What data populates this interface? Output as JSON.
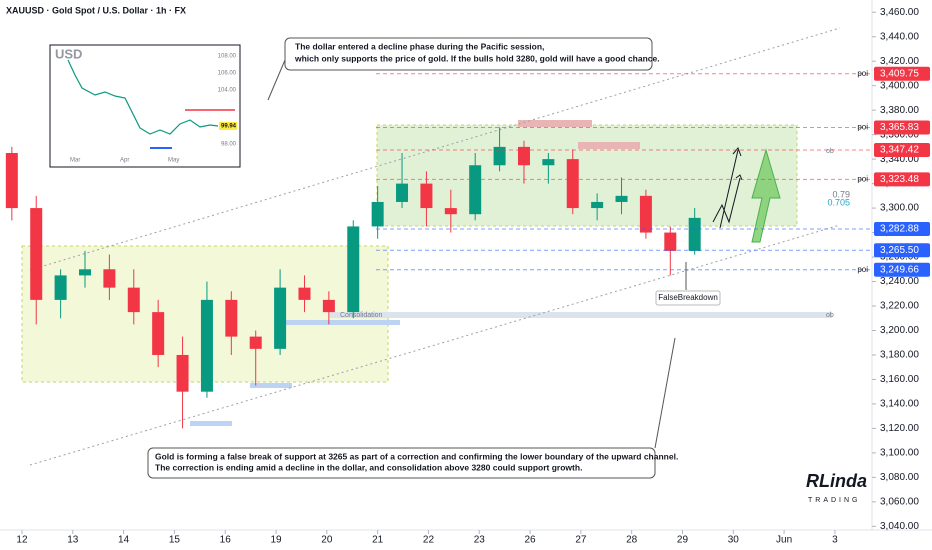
{
  "chart_data": {
    "type": "candlestick",
    "title": "XAUUSD · Gold Spot / U.S. Dollar · 1h · FX",
    "x": [
      -0.2,
      0.28,
      0.76,
      1.24,
      1.72,
      2.2,
      2.68,
      3.16,
      3.64,
      4.12,
      4.6,
      5.08,
      5.56,
      6.04,
      6.52,
      7.0,
      7.48,
      7.96,
      8.44,
      8.92,
      9.4,
      9.88,
      10.36,
      10.84,
      11.32,
      11.8,
      12.28,
      12.76,
      13.24
    ],
    "open": [
      3345,
      3300,
      3225,
      3245,
      3250,
      3235,
      3215,
      3180,
      3150,
      3225,
      3195,
      3185,
      3235,
      3225,
      3215,
      3285,
      3305,
      3320,
      3300,
      3295,
      3335,
      3350,
      3335,
      3340,
      3300,
      3305,
      3310,
      3280,
      3265
    ],
    "high": [
      3350,
      3310,
      3250,
      3265,
      3262,
      3250,
      3225,
      3195,
      3240,
      3232,
      3200,
      3250,
      3245,
      3232,
      3290,
      3318,
      3345,
      3330,
      3315,
      3345,
      3366,
      3355,
      3345,
      3348,
      3312,
      3325,
      3315,
      3285,
      3300
    ],
    "low": [
      3290,
      3205,
      3210,
      3235,
      3225,
      3205,
      3170,
      3120,
      3145,
      3180,
      3155,
      3180,
      3215,
      3205,
      3210,
      3275,
      3300,
      3285,
      3280,
      3290,
      3330,
      3320,
      3320,
      3295,
      3290,
      3295,
      3275,
      3245,
      3262
    ],
    "close": [
      3300,
      3225,
      3245,
      3250,
      3235,
      3215,
      3180,
      3150,
      3225,
      3195,
      3185,
      3235,
      3225,
      3215,
      3285,
      3305,
      3320,
      3300,
      3295,
      3335,
      3350,
      3335,
      3340,
      3300,
      3305,
      3310,
      3280,
      3265,
      3292
    ],
    "up_color": "#089981",
    "down_color": "#f23645",
    "xlim": [
      -0.433,
      16.73
    ],
    "xticks": [
      {
        "value": 0,
        "label": "12"
      },
      {
        "value": 1,
        "label": "13"
      },
      {
        "value": 2,
        "label": "14"
      },
      {
        "value": 3,
        "label": "15"
      },
      {
        "value": 4,
        "label": "16"
      },
      {
        "value": 5,
        "label": "19"
      },
      {
        "value": 6,
        "label": "20"
      },
      {
        "value": 7,
        "label": "21"
      },
      {
        "value": 8,
        "label": "22"
      },
      {
        "value": 9,
        "label": "23"
      },
      {
        "value": 10,
        "label": "26"
      },
      {
        "value": 11,
        "label": "27"
      },
      {
        "value": 12,
        "label": "28"
      },
      {
        "value": 13,
        "label": "29"
      },
      {
        "value": 14,
        "label": "30"
      },
      {
        "value": 15,
        "label": "Jun"
      },
      {
        "value": 16,
        "label": "3"
      }
    ],
    "ylim": [
      3037,
      3470
    ],
    "yticks": [
      {
        "value": 3460,
        "label": "3,460.00"
      },
      {
        "value": 3440,
        "label": "3,440.00"
      },
      {
        "value": 3420,
        "label": "3,420.00"
      },
      {
        "value": 3400,
        "label": "3,400.00"
      },
      {
        "value": 3380,
        "label": "3,380.00"
      },
      {
        "value": 3360,
        "label": "3,360.00"
      },
      {
        "value": 3340,
        "label": "3,340.00"
      },
      {
        "value": 3320,
        "label": "3,320.00"
      },
      {
        "value": 3300,
        "label": "3,300.00"
      },
      {
        "value": 3280,
        "label": "3,280.00"
      },
      {
        "value": 3260,
        "label": "3,260.00"
      },
      {
        "value": 3240,
        "label": "3,240.00"
      },
      {
        "value": 3220,
        "label": "3,220.00"
      },
      {
        "value": 3200,
        "label": "3,200.00"
      },
      {
        "value": 3180,
        "label": "3,180.00"
      },
      {
        "value": 3160,
        "label": "3,160.00"
      },
      {
        "value": 3140,
        "label": "3,140.00"
      },
      {
        "value": 3120,
        "label": "3,120.00"
      },
      {
        "value": 3100,
        "label": "3,100.00"
      },
      {
        "value": 3080,
        "label": "3,080.00"
      },
      {
        "value": 3060,
        "label": "3,060.00"
      },
      {
        "value": 3040,
        "label": "3,040.00"
      }
    ],
    "levels": [
      {
        "value": 3409.75,
        "label": "3,409.75",
        "color": "#f23645",
        "note": "poi"
      },
      {
        "value": 3365.83,
        "label": "3,365.83",
        "color": "#f23645",
        "note": "poi"
      },
      {
        "value": 3347.42,
        "label": "3,347.42",
        "color": "#f23645"
      },
      {
        "value": 3323.48,
        "label": "3,323.48",
        "color": "#f23645",
        "note": "poi"
      },
      {
        "value": 3282.88,
        "label": "3,282.88",
        "color": "#2962ff"
      },
      {
        "value": 3265.5,
        "label": "3,265.50",
        "color": "#2962ff"
      },
      {
        "value": 3249.66,
        "label": "3,249.66",
        "color": "#2962ff",
        "note": "poi"
      }
    ],
    "annotations": {
      "top_note": [
        "The dollar entered a decline phase during the Pacific session,",
        "which only supports the price of gold. If the bulls hold 3280, gold will have a good chance."
      ],
      "bottom_note": [
        "Gold is forming a false break of support at 3265 as part of a correction and confirming the lower boundary of the upward channel.",
        "The correction is ending amid a decline in the dollar, and consolidation above 3280 could support growth."
      ],
      "false_breakdown": "FalseBreakdown",
      "consolidation": "Consolidation",
      "ob": "ob",
      "fib_upper": "0.79",
      "fib_lower": "0.705",
      "logo": "RLinda",
      "logo_sub": "TRADING"
    },
    "inset": {
      "title": "USD",
      "price": "99.94",
      "ticks": [
        "108.00",
        "106.00",
        "104.00",
        "98.00"
      ],
      "months": [
        "Mar",
        "Apr",
        "May"
      ]
    }
  }
}
